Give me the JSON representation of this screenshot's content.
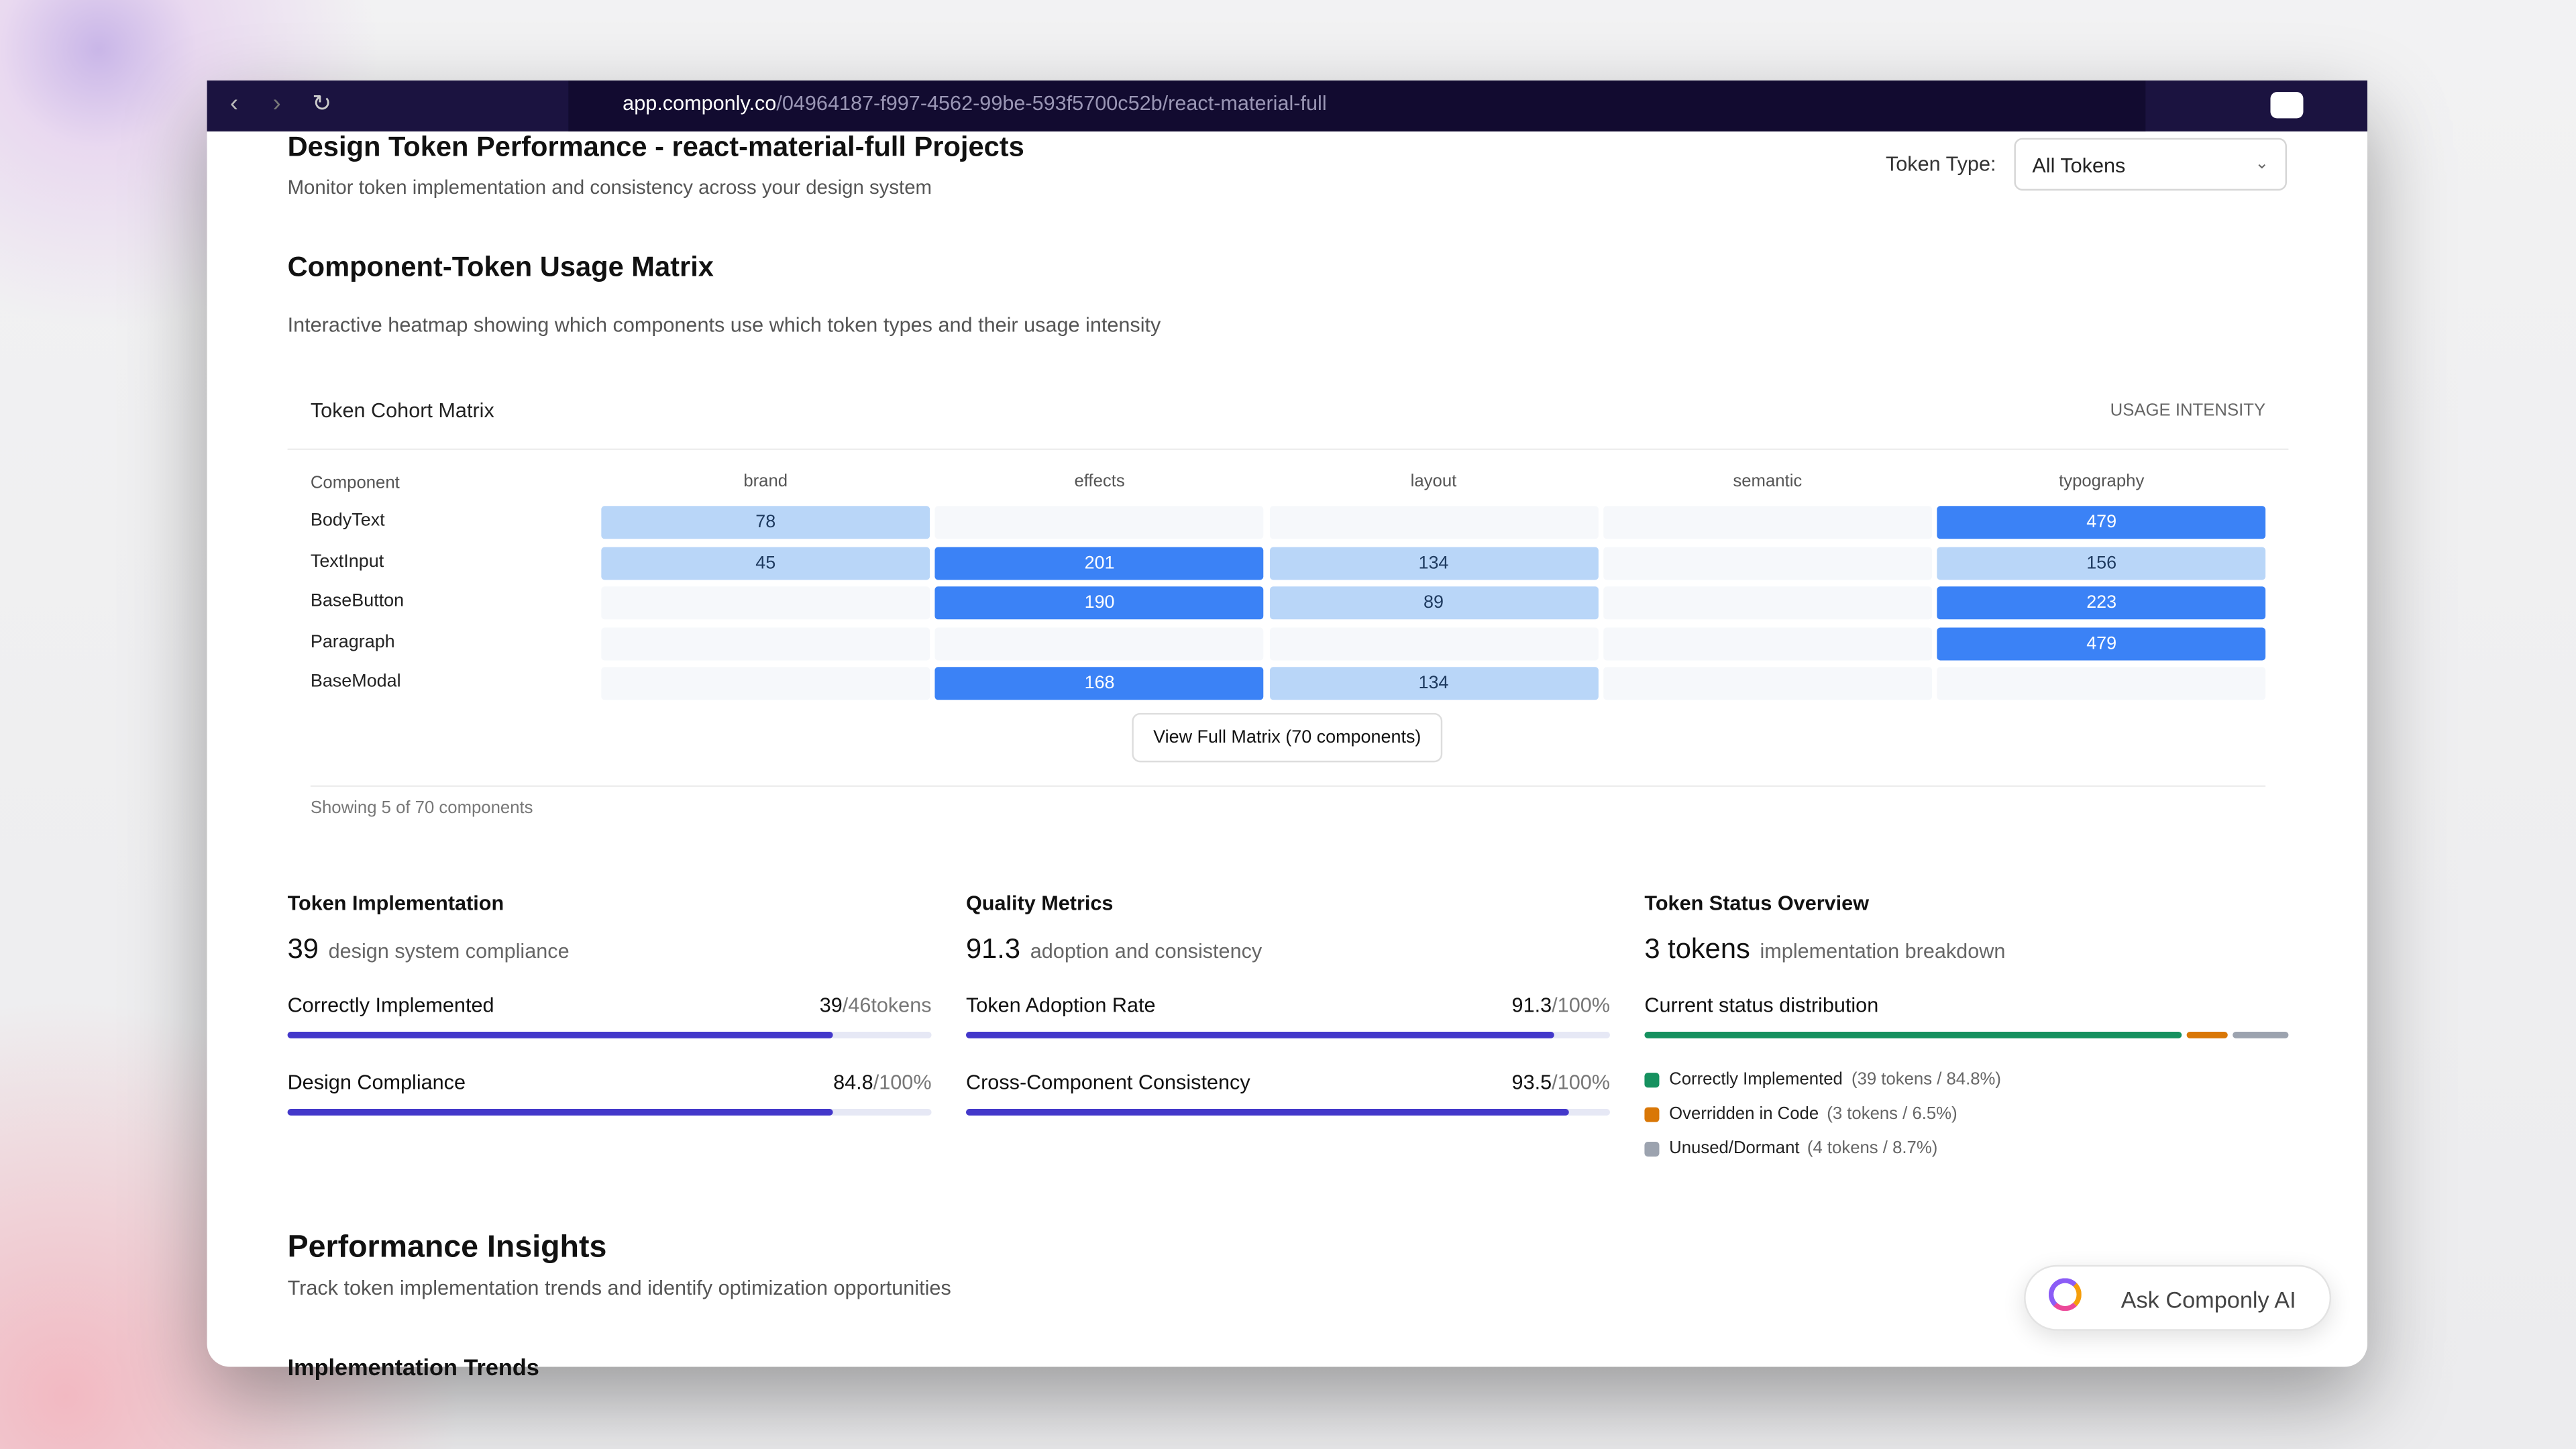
{
  "browser": {
    "url_host": "app.componly.co",
    "url_path": "/04964187-f997-4562-99be-593f5700c52b/react-material-full"
  },
  "header": {
    "title": "Design Token Performance - react-material-full Projects",
    "subtitle": "Monitor token implementation and consistency across your design system",
    "filter_label": "Token Type:",
    "filter_value": "All Tokens"
  },
  "matrix_section": {
    "title": "Component-Token Usage Matrix",
    "description": "Interactive heatmap showing which components use which token types and their usage intensity",
    "card_title": "Token Cohort Matrix",
    "legend_label": "USAGE INTENSITY",
    "row_header": "Component",
    "columns": [
      "brand",
      "effects",
      "layout",
      "semantic",
      "typography"
    ],
    "rows": [
      {
        "name": "BodyText",
        "values": [
          78,
          null,
          null,
          null,
          479
        ]
      },
      {
        "name": "TextInput",
        "values": [
          45,
          201,
          134,
          null,
          156
        ]
      },
      {
        "name": "BaseButton",
        "values": [
          null,
          190,
          89,
          null,
          223
        ]
      },
      {
        "name": "Paragraph",
        "values": [
          null,
          null,
          null,
          null,
          479
        ]
      },
      {
        "name": "BaseModal",
        "values": [
          null,
          168,
          134,
          null,
          null
        ]
      }
    ],
    "button": "View Full Matrix (70 components)",
    "footer": "Showing 5 of 70 components"
  },
  "metrics": [
    {
      "title": "Token Implementation",
      "big": 39,
      "caption": "design system compliance",
      "bars": [
        {
          "label": "Correctly Implemented",
          "value": 39,
          "max": {
            "value": 46,
            "label": "/46tokens"
          }
        },
        {
          "label": "Design Compliance",
          "value": 84.8,
          "max": {
            "value": 100,
            "label": "/100%"
          }
        }
      ]
    },
    {
      "title": "Quality Metrics",
      "big": 91.3,
      "caption": "adoption and consistency",
      "bars": [
        {
          "label": "Token Adoption Rate",
          "value": 91.3,
          "max": {
            "value": 100,
            "label": "/100%"
          }
        },
        {
          "label": "Cross-Component Consistency",
          "value": 93.5,
          "max": {
            "value": 100,
            "label": "/100%"
          }
        }
      ]
    }
  ],
  "status": {
    "title": "Token Status Overview",
    "big": "3 tokens",
    "caption": "implementation breakdown",
    "distribution_label": "Current status distribution",
    "segments": [
      {
        "name": "Correctly Implemented",
        "detail": "(39 tokens / 84.8%)",
        "value": 84.8,
        "color": "#16915f"
      },
      {
        "name": "Overridden in Code",
        "detail": "(3 tokens / 6.5%)",
        "value": 6.5,
        "color": "#d97706"
      },
      {
        "name": "Unused/Dormant",
        "detail": "(4 tokens / 8.7%)",
        "value": 8.7,
        "color": "#9ca3af"
      }
    ]
  },
  "insights": {
    "title": "Performance Insights",
    "subtitle": "Track token implementation trends and identify optimization opportunities",
    "next_heading": "Implementation Trends"
  },
  "assistant": {
    "label": "Ask Componly AI"
  }
}
